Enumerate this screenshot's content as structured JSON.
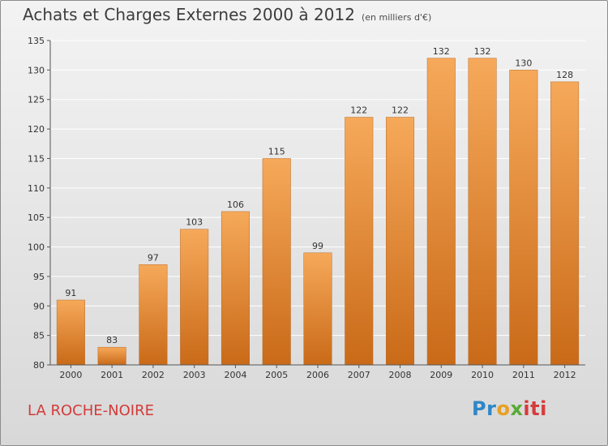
{
  "header": {
    "title": "Achats et Charges Externes 2000 à 2012",
    "subtitle": "(en milliers d'€)"
  },
  "footer": {
    "commune": "LA ROCHE-NOIRE",
    "logo_parts": [
      "Pr",
      "o",
      "x",
      "iti"
    ]
  },
  "colors": {
    "bar_top": "#f6a95a",
    "bar_bottom": "#c96a18",
    "axis": "#555555",
    "grid": "#ffffff"
  },
  "chart_data": {
    "type": "bar",
    "title": "Achats et Charges Externes 2000 à 2012",
    "subtitle": "(en milliers d'€)",
    "xlabel": "",
    "ylabel": "",
    "categories": [
      "2000",
      "2001",
      "2002",
      "2003",
      "2004",
      "2005",
      "2006",
      "2007",
      "2008",
      "2009",
      "2010",
      "2011",
      "2012"
    ],
    "values": [
      91,
      83,
      97,
      103,
      106,
      115,
      99,
      122,
      122,
      132,
      132,
      130,
      128
    ],
    "ylim": [
      80,
      135
    ],
    "yticks": [
      80,
      85,
      90,
      95,
      100,
      105,
      110,
      115,
      120,
      125,
      130,
      135
    ],
    "grid": true,
    "legend": "none"
  }
}
